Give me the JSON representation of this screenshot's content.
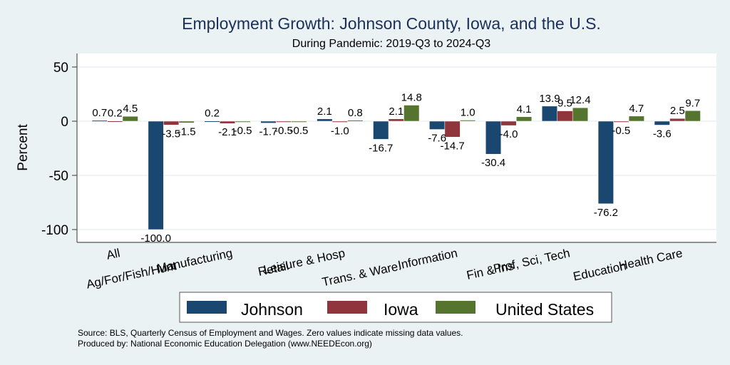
{
  "chart_data": {
    "type": "bar",
    "title": "Employment Growth: Johnson County, Iowa, and the U.S.",
    "subtitle": "During Pandemic: 2019-Q3 to 2024-Q3",
    "xlabel": "",
    "ylabel": "Percent",
    "ylim": [
      -110,
      62
    ],
    "yticks": [
      50,
      0,
      -50,
      -100
    ],
    "grid": true,
    "legend_position": "bottom",
    "categories": [
      "All",
      "Ag/For/Fish/Hunt",
      "Manufacturing",
      "Retail",
      "Leisure & Hosp",
      "Trans. & Ware.",
      "Information",
      "Fin & Ins",
      "Prof, Sci, Tech",
      "Education",
      "Health Care"
    ],
    "series": [
      {
        "name": "Johnson",
        "color": "#1a476f",
        "values": [
          0.7,
          -100.0,
          0.2,
          -1.7,
          2.1,
          -16.7,
          -7.6,
          -30.4,
          13.9,
          -76.2,
          -3.6
        ]
      },
      {
        "name": "Iowa",
        "color": "#90353b",
        "values": [
          0.2,
          -3.5,
          -2.1,
          -0.5,
          -1.0,
          2.1,
          -14.7,
          -4.0,
          9.5,
          -0.5,
          2.5
        ]
      },
      {
        "name": "United States",
        "color": "#55752f",
        "values": [
          4.5,
          -1.5,
          -0.5,
          -0.5,
          0.8,
          14.8,
          1.0,
          4.1,
          12.4,
          4.7,
          9.7
        ]
      }
    ],
    "notes": [
      "Source: BLS, Quarterly Census of Employment and Wages. Zero values indicate missing data values.",
      "Produced by: National Economic Education Delegation (www.NEEDEcon.org)"
    ]
  },
  "colors": {
    "background": "#eaf2f3",
    "plot_background": "#ffffff",
    "grid": "#eaf2f3",
    "title": "#1a2f5a"
  }
}
